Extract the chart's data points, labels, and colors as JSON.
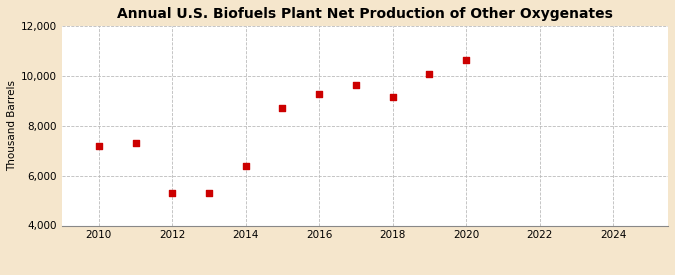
{
  "title": "Annual U.S. Biofuels Plant Net Production of Other Oxygenates",
  "ylabel": "Thousand Barrels",
  "x": [
    2010,
    2011,
    2012,
    2013,
    2014,
    2015,
    2016,
    2017,
    2018,
    2019,
    2020
  ],
  "y": [
    7200,
    7300,
    5300,
    5300,
    6400,
    8700,
    9300,
    9650,
    9150,
    10100,
    10650
  ],
  "xlim": [
    2009.0,
    2025.5
  ],
  "ylim": [
    4000,
    12000
  ],
  "yticks": [
    4000,
    6000,
    8000,
    10000,
    12000
  ],
  "xticks": [
    2010,
    2012,
    2014,
    2016,
    2018,
    2020,
    2022,
    2024
  ],
  "marker_color": "#cc0000",
  "marker": "s",
  "marker_size": 16,
  "grid_color": "#bbbbbb",
  "plot_bg_color": "#ffffff",
  "figure_bg_color": "#f5e6cc",
  "title_fontsize": 10,
  "axis_fontsize": 7.5,
  "ylabel_fontsize": 7.5,
  "source_fontsize": 7
}
